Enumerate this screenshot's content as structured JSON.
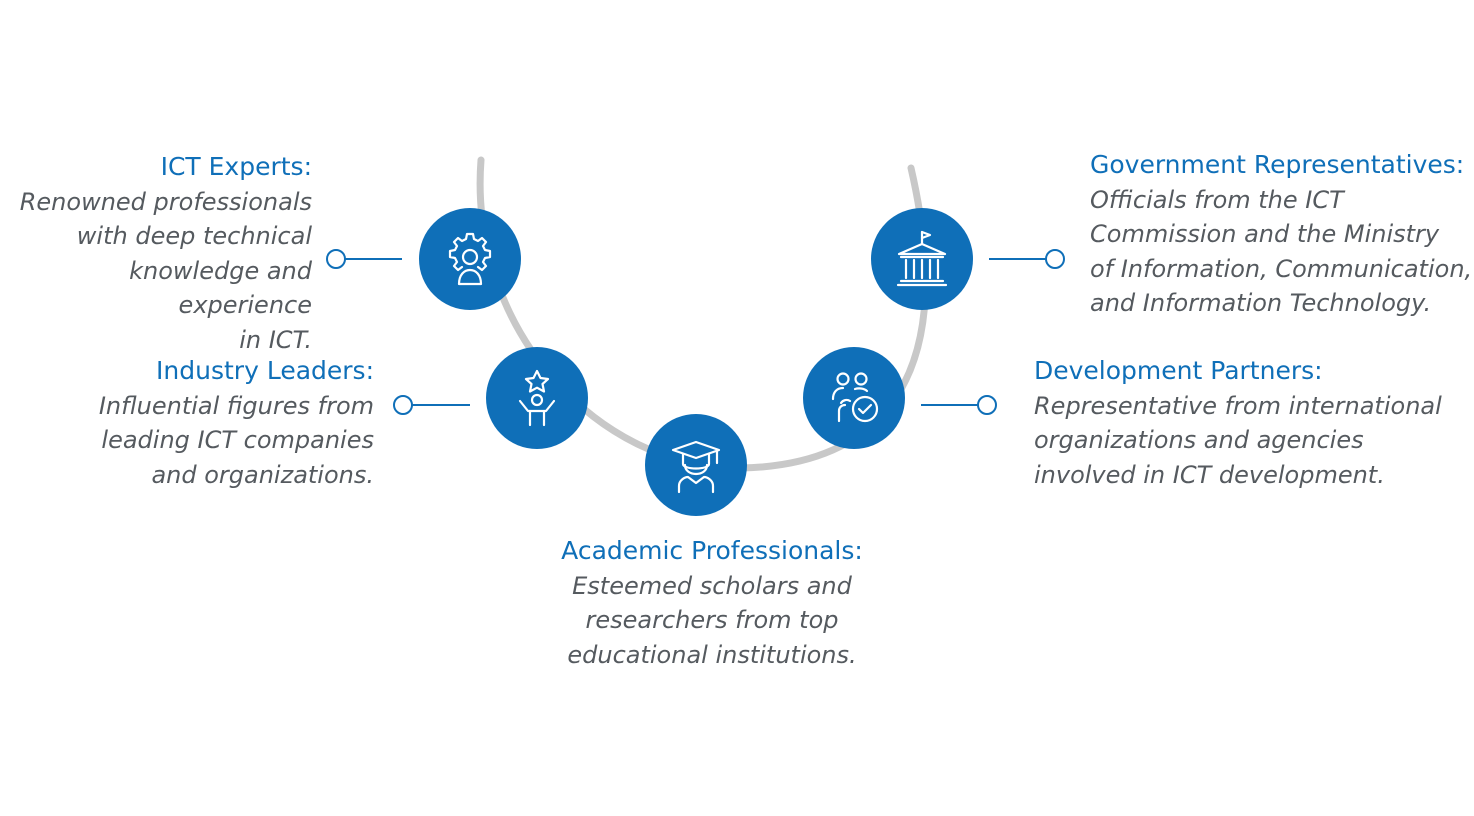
{
  "colors": {
    "accent": "#0f6fb8",
    "arc": "#c8c8c8",
    "body_text": "#555a5f",
    "background": "#ffffff"
  },
  "stakeholders": [
    {
      "title": "ICT Experts:",
      "description": "Renowned professionals\nwith deep technical\nknowledge and experience\nin ICT.",
      "icon": "gear-person-icon"
    },
    {
      "title": "Industry Leaders:",
      "description": "Influential figures from\nleading ICT companies\nand organizations.",
      "icon": "star-person-icon"
    },
    {
      "title": "Academic Professionals:",
      "description": "Esteemed scholars and\nresearchers from top\neducational institutions.",
      "icon": "graduation-cap-icon"
    },
    {
      "title": "Development Partners:",
      "description": "Representative from international\norganizations and agencies\ninvolved in ICT development.",
      "icon": "people-check-icon"
    },
    {
      "title": "Government Representatives:",
      "description": "Officials from the ICT\nCommission and the Ministry\nof Information, Communication,\nand Information Technology.",
      "icon": "government-building-icon"
    }
  ]
}
